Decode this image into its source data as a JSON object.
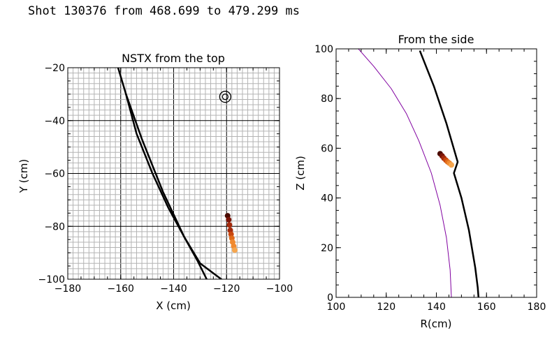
{
  "header": {
    "title": "Shot 130376 from 468.699 to 479.299 ms"
  },
  "colors": {
    "axis": "#000000",
    "grid_minor": "#b4b4b4",
    "grid_major": "#000000",
    "boundary": "#8000a0",
    "trail": [
      "#4a0a00",
      "#7a1408",
      "#a32a0c",
      "#c8460e",
      "#e06a1a",
      "#f08a30",
      "#f6a64e"
    ]
  },
  "chart_data": [
    {
      "id": "top",
      "type": "line",
      "title": "NSTX from the top",
      "xlabel": "X (cm)",
      "ylabel": "Y (cm)",
      "xlim": [
        -180,
        -100
      ],
      "ylim": [
        -100,
        -20
      ],
      "xticks": [
        -180,
        -160,
        -140,
        -120,
        -100
      ],
      "yticks": [
        -100,
        -80,
        -60,
        -40,
        -20
      ],
      "xtick_labels": [
        "−180",
        "−160",
        "−140",
        "−120",
        "−100"
      ],
      "ytick_labels": [
        "−100",
        "−80",
        "−60",
        "−40",
        "−20"
      ],
      "grid": true,
      "grid_minor_step": 2,
      "grid_major_step": 20,
      "series": [
        {
          "name": "outer-edge",
          "x": [
            -161,
            -158,
            -154,
            -148,
            -142,
            -136,
            -131,
            -127.5
          ],
          "y": [
            -20,
            -30,
            -45,
            -60,
            -73,
            -84,
            -93,
            -100
          ]
        },
        {
          "name": "inner-edge",
          "x": [
            -158,
            -152,
            -144,
            -136,
            -130,
            -122
          ],
          "y": [
            -30,
            -47,
            -67,
            -84,
            -94,
            -100
          ]
        },
        {
          "name": "fiducial",
          "x": [
            -120.5
          ],
          "y": [
            -31
          ]
        },
        {
          "name": "trail",
          "x": [
            -119.6,
            -119.2,
            -118.9,
            -118.6,
            -118.3,
            -118,
            -117.7,
            -117.3,
            -116.9
          ],
          "y": [
            -76,
            -77.5,
            -79.5,
            -81.5,
            -83,
            -84.5,
            -86,
            -87.5,
            -89
          ]
        }
      ]
    },
    {
      "id": "side",
      "type": "line",
      "title": "From the side",
      "xlabel": "R(cm)",
      "ylabel": "Z (cm)",
      "xlim": [
        100,
        180
      ],
      "ylim": [
        0,
        100
      ],
      "xticks": [
        100,
        120,
        140,
        160,
        180
      ],
      "yticks": [
        0,
        20,
        40,
        60,
        80,
        100
      ],
      "xtick_labels": [
        "100",
        "120",
        "140",
        "160",
        "180"
      ],
      "ytick_labels": [
        "0",
        "20",
        "40",
        "60",
        "80",
        "100"
      ],
      "grid": false,
      "series": [
        {
          "name": "plasma-boundary",
          "x": [
            108,
            115,
            122,
            128,
            133,
            138,
            141.5,
            144,
            145.5,
            146
          ],
          "y": [
            101,
            93,
            84,
            74,
            63,
            50,
            37,
            24,
            11,
            0
          ]
        },
        {
          "name": "wall",
          "x": [
            133.5,
            139,
            144,
            148.5,
            147,
            150,
            153,
            155.5,
            156.5,
            156.8
          ],
          "y": [
            99,
            85,
            70,
            54.5,
            50,
            40,
            27,
            12,
            4,
            0
          ]
        },
        {
          "name": "trail",
          "x": [
            141.5,
            142.3,
            143,
            143.8,
            144.5,
            145.2,
            146
          ],
          "y": [
            57.8,
            56.9,
            56,
            55.2,
            54.5,
            54,
            53.3
          ]
        }
      ]
    }
  ]
}
